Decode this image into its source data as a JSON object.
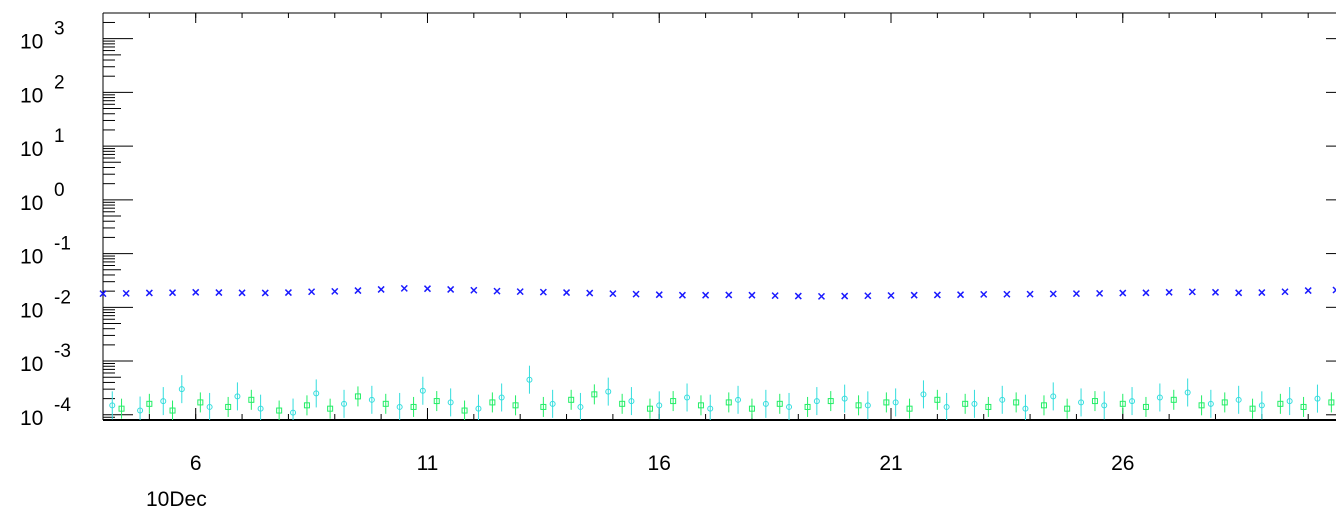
{
  "chart_data": {
    "type": "scatter",
    "title": "",
    "xlabel": "",
    "ylabel": "",
    "x_start_label": "10Dec",
    "xlim": [
      4.0,
      30.6
    ],
    "ylim": [
      8e-05,
      3000
    ],
    "y_scale": "log",
    "x_ticks": [
      {
        "value": 6,
        "label": "6"
      },
      {
        "value": 11,
        "label": "11"
      },
      {
        "value": 16,
        "label": "16"
      },
      {
        "value": 21,
        "label": "21"
      },
      {
        "value": 26,
        "label": "26"
      }
    ],
    "y_ticks": [
      {
        "value": 0.0001,
        "base": "10",
        "exp": "-4"
      },
      {
        "value": 0.001,
        "base": "10",
        "exp": "-3"
      },
      {
        "value": 0.01,
        "base": "10",
        "exp": "-2"
      },
      {
        "value": 0.1,
        "base": "10",
        "exp": "-1"
      },
      {
        "value": 1,
        "base": "10",
        "exp": "0"
      },
      {
        "value": 10,
        "base": "10",
        "exp": "1"
      },
      {
        "value": 100,
        "base": "10",
        "exp": "2"
      },
      {
        "value": 1000,
        "base": "10",
        "exp": "3"
      }
    ],
    "grid": false,
    "series": [
      {
        "color": "#1a1aff",
        "marker": "x",
        "points": [
          [
            4.0,
            0.018
          ],
          [
            4.5,
            0.0182
          ],
          [
            5.0,
            0.0185
          ],
          [
            5.5,
            0.0187
          ],
          [
            6.0,
            0.019
          ],
          [
            6.5,
            0.0188
          ],
          [
            7.0,
            0.0186
          ],
          [
            7.5,
            0.0185
          ],
          [
            8.0,
            0.0188
          ],
          [
            8.5,
            0.0195
          ],
          [
            9.0,
            0.0198
          ],
          [
            9.5,
            0.0205
          ],
          [
            10.0,
            0.0215
          ],
          [
            10.5,
            0.0225
          ],
          [
            11.0,
            0.0222
          ],
          [
            11.5,
            0.0215
          ],
          [
            12.0,
            0.0208
          ],
          [
            12.5,
            0.02
          ],
          [
            13.0,
            0.0196
          ],
          [
            13.5,
            0.0192
          ],
          [
            14.0,
            0.0188
          ],
          [
            14.5,
            0.0184
          ],
          [
            15.0,
            0.018
          ],
          [
            15.5,
            0.0176
          ],
          [
            16.0,
            0.0172
          ],
          [
            16.5,
            0.0168
          ],
          [
            17.0,
            0.0168
          ],
          [
            17.5,
            0.017
          ],
          [
            18.0,
            0.0168
          ],
          [
            18.5,
            0.0165
          ],
          [
            19.0,
            0.0162
          ],
          [
            19.5,
            0.016
          ],
          [
            20.0,
            0.0162
          ],
          [
            20.5,
            0.0164
          ],
          [
            21.0,
            0.0166
          ],
          [
            21.5,
            0.0168
          ],
          [
            22.0,
            0.017
          ],
          [
            22.5,
            0.0172
          ],
          [
            23.0,
            0.0174
          ],
          [
            23.5,
            0.0175
          ],
          [
            24.0,
            0.0176
          ],
          [
            24.5,
            0.0178
          ],
          [
            25.0,
            0.018
          ],
          [
            25.5,
            0.0182
          ],
          [
            26.0,
            0.0184
          ],
          [
            26.5,
            0.0186
          ],
          [
            27.0,
            0.019
          ],
          [
            27.5,
            0.0194
          ],
          [
            28.0,
            0.019
          ],
          [
            28.5,
            0.0186
          ],
          [
            29.0,
            0.0188
          ],
          [
            29.5,
            0.0195
          ],
          [
            30.0,
            0.0205
          ],
          [
            30.6,
            0.021
          ]
        ]
      },
      {
        "color": "#33dddd",
        "marker": "circle",
        "points": [
          [
            4.2,
            0.00015
          ],
          [
            4.8,
            0.00012
          ],
          [
            5.3,
            0.00018
          ],
          [
            5.7,
            0.0003
          ],
          [
            6.3,
            0.00014
          ],
          [
            6.9,
            0.00022
          ],
          [
            7.4,
            0.00013
          ],
          [
            8.1,
            0.00011
          ],
          [
            8.6,
            0.00025
          ],
          [
            9.2,
            0.00016
          ],
          [
            9.8,
            0.00019
          ],
          [
            10.4,
            0.00014
          ],
          [
            10.9,
            0.00028
          ],
          [
            11.5,
            0.00017
          ],
          [
            12.1,
            0.00013
          ],
          [
            12.6,
            0.00021
          ],
          [
            13.2,
            0.00045
          ],
          [
            13.7,
            0.00016
          ],
          [
            14.3,
            0.00014
          ],
          [
            14.9,
            0.00027
          ],
          [
            15.4,
            0.00018
          ],
          [
            16.0,
            0.00015
          ],
          [
            16.6,
            0.00021
          ],
          [
            17.1,
            0.00013
          ],
          [
            17.7,
            0.00019
          ],
          [
            18.3,
            0.00016
          ],
          [
            18.8,
            0.00014
          ],
          [
            19.4,
            0.00018
          ],
          [
            20.0,
            0.0002
          ],
          [
            20.5,
            0.00015
          ],
          [
            21.1,
            0.00017
          ],
          [
            21.7,
            0.00024
          ],
          [
            22.2,
            0.00014
          ],
          [
            22.8,
            0.00016
          ],
          [
            23.4,
            0.00019
          ],
          [
            23.9,
            0.00013
          ],
          [
            24.5,
            0.00022
          ],
          [
            25.1,
            0.00017
          ],
          [
            25.6,
            0.00015
          ],
          [
            26.2,
            0.00018
          ],
          [
            26.8,
            0.00021
          ],
          [
            27.4,
            0.00026
          ],
          [
            27.9,
            0.00016
          ],
          [
            28.5,
            0.00019
          ],
          [
            29.0,
            0.00015
          ],
          [
            29.6,
            0.00018
          ],
          [
            30.2,
            0.0002
          ]
        ]
      },
      {
        "color": "#22ee66",
        "marker": "square",
        "points": [
          [
            4.4,
            0.00013
          ],
          [
            5.0,
            0.00016
          ],
          [
            5.5,
            0.00012
          ],
          [
            6.1,
            0.00017
          ],
          [
            6.7,
            0.00014
          ],
          [
            7.2,
            0.00019
          ],
          [
            7.8,
            0.00012
          ],
          [
            8.4,
            0.00015
          ],
          [
            8.9,
            0.00013
          ],
          [
            9.5,
            0.00022
          ],
          [
            10.1,
            0.00016
          ],
          [
            10.7,
            0.00014
          ],
          [
            11.2,
            0.00018
          ],
          [
            11.8,
            0.00012
          ],
          [
            12.4,
            0.00017
          ],
          [
            12.9,
            0.00015
          ],
          [
            13.5,
            0.00014
          ],
          [
            14.1,
            0.00019
          ],
          [
            14.6,
            0.00024
          ],
          [
            15.2,
            0.00016
          ],
          [
            15.8,
            0.00013
          ],
          [
            16.3,
            0.00018
          ],
          [
            16.9,
            0.00015
          ],
          [
            17.5,
            0.00017
          ],
          [
            18.0,
            0.00013
          ],
          [
            18.6,
            0.00016
          ],
          [
            19.2,
            0.00014
          ],
          [
            19.7,
            0.00018
          ],
          [
            20.3,
            0.00015
          ],
          [
            20.9,
            0.00017
          ],
          [
            21.4,
            0.00013
          ],
          [
            22.0,
            0.00019
          ],
          [
            22.6,
            0.00016
          ],
          [
            23.1,
            0.00014
          ],
          [
            23.7,
            0.00017
          ],
          [
            24.3,
            0.00015
          ],
          [
            24.8,
            0.00013
          ],
          [
            25.4,
            0.00018
          ],
          [
            26.0,
            0.00016
          ],
          [
            26.5,
            0.00014
          ],
          [
            27.1,
            0.00019
          ],
          [
            27.7,
            0.00015
          ],
          [
            28.2,
            0.00017
          ],
          [
            28.8,
            0.00013
          ],
          [
            29.4,
            0.00016
          ],
          [
            29.9,
            0.00014
          ],
          [
            30.5,
            0.00017
          ]
        ]
      }
    ]
  }
}
